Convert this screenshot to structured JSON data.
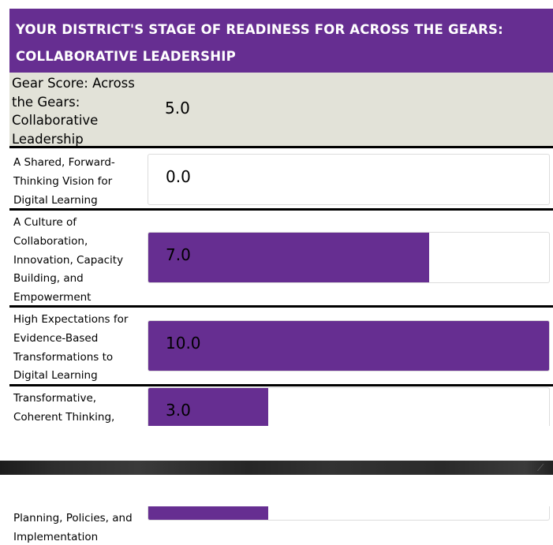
{
  "header": {
    "line1": "YOUR DISTRICT'S STAGE OF READINESS FOR ACROSS THE GEARS:",
    "line2": "COLLABORATIVE LEADERSHIP"
  },
  "gear_score": {
    "label_lines": [
      "Gear Score: Across",
      "the Gears:",
      "Collaborative",
      "Leadership"
    ],
    "value": "5.0"
  },
  "rows": [
    {
      "label_lines": [
        "A Shared, Forward-",
        "Thinking Vision for",
        "Digital Learning"
      ],
      "value_text": "0.0",
      "value": 0.0
    },
    {
      "label_lines": [
        "A Culture of",
        "Collaboration,",
        "Innovation, Capacity",
        "Building, and",
        "Empowerment"
      ],
      "value_text": "7.0",
      "value": 7.0
    },
    {
      "label_lines": [
        "High Expectations for",
        "Evidence-Based",
        "Transformations to",
        "Digital Learning"
      ],
      "value_text": "10.0",
      "value": 10.0
    },
    {
      "label_lines": [
        "Transformative,",
        "Coherent Thinking,"
      ],
      "value_text": "3.0",
      "value": 3.0
    }
  ],
  "continued_row": {
    "label_lines": [
      "Planning, Policies, and",
      "Implementation"
    ],
    "value": 3.0
  },
  "scale_max": 10,
  "colors": {
    "accent": "#662e91",
    "gear_bg": "#e2e2d8"
  }
}
